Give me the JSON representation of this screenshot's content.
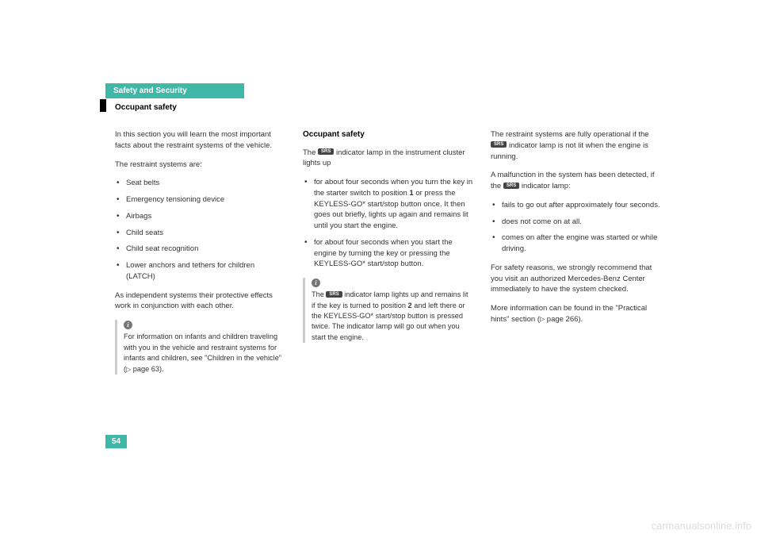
{
  "header": {
    "chapter": "Safety and Security",
    "section": "Occupant safety"
  },
  "col1": {
    "p1": "In this section you will learn the most important facts about the restraint systems of the vehicle.",
    "p2": "The restraint systems are:",
    "items": [
      "Seat belts",
      "Emergency tensioning device",
      "Airbags",
      "Child seats",
      "Child seat recognition",
      "Lower anchors and tethers for children (LATCH)"
    ],
    "p3": "As independent systems their protective effects work in conjunction with each other.",
    "info": "For information on infants and children traveling with you in the vehicle and restraint systems for infants and children, see \"Children in the vehicle\" (",
    "info_ref": " page 63)."
  },
  "col2": {
    "title": "Occupant safety",
    "p1a": "The ",
    "p1b": " indicator lamp in the instrument cluster lights up",
    "items": [
      {
        "a": "for about four seconds when you turn the key in the starter switch to position ",
        "num": "1",
        "b": " or press the KEYLESS-GO* start/stop button once. It then goes out briefly, lights up again and remains lit until you start the engine."
      },
      {
        "a": "for about four seconds when you start the engine by turning the key or pressing the KEYLESS-GO* start/stop button.",
        "num": "",
        "b": ""
      }
    ],
    "info_a": "The ",
    "info_b": " indicator lamp lights up and remains lit if the key is turned to position ",
    "info_num": "2",
    "info_c": " and left there or the KEYLESS-GO* start/stop button is pressed twice. The indicator lamp will go out when you start the engine."
  },
  "col3": {
    "p1a": "The restraint systems are fully operational if the ",
    "p1b": " indicator lamp is not lit when the engine is running.",
    "p2a": "A malfunction in the system has been detected, if the ",
    "p2b": " indicator lamp:",
    "items": [
      "fails to go out after approximately four seconds.",
      "does not come on at all.",
      "comes on after the engine was started or while driving."
    ],
    "p3": "For safety reasons, we strongly recommend that you visit an authorized Mercedes-Benz Center immediately to have the system checked.",
    "p4a": "More information can be found in the \"Practical hints\" section (",
    "p4b": " page 266)."
  },
  "badges": {
    "srs": "SRS"
  },
  "page_number": "54",
  "watermark": "carmanualsonline.info"
}
